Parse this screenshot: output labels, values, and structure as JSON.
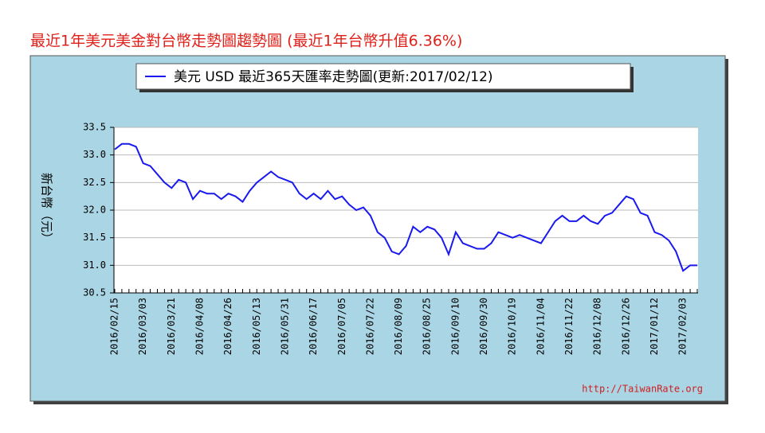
{
  "chart_data": {
    "type": "line",
    "title": "最近1年美元美金對台幣走勢圖趨勢圖 (最近1年台幣升值6.36%)",
    "y_label": "新台幣（元）",
    "watermark": "http://TaiwanRate.org",
    "categories": [
      "2016/02/15",
      null,
      null,
      null,
      "2016/03/03",
      null,
      null,
      null,
      "2016/03/21",
      null,
      null,
      null,
      "2016/04/08",
      null,
      null,
      null,
      "2016/04/26",
      null,
      null,
      null,
      "2016/05/13",
      null,
      null,
      null,
      "2016/05/31",
      null,
      null,
      null,
      "2016/06/17",
      null,
      null,
      null,
      "2016/07/05",
      null,
      null,
      null,
      "2016/07/22",
      null,
      null,
      null,
      "2016/08/09",
      null,
      null,
      null,
      "2016/08/25",
      null,
      null,
      null,
      "2016/09/10",
      null,
      null,
      null,
      "2016/09/30",
      null,
      null,
      null,
      "2016/10/19",
      null,
      null,
      null,
      "2016/11/04",
      null,
      null,
      null,
      "2016/11/22",
      null,
      null,
      null,
      "2016/12/08",
      null,
      null,
      null,
      "2016/12/26",
      null,
      null,
      null,
      "2017/01/12",
      null,
      null,
      null,
      "2017/02/03",
      null,
      null
    ],
    "series": [
      {
        "name": "美元 USD 最近365天匯率走勢圖(更新:2017/02/12)",
        "color": "#1a1aee",
        "values": [
          33.1,
          33.2,
          33.2,
          33.15,
          32.85,
          32.8,
          32.65,
          32.5,
          32.4,
          32.55,
          32.5,
          32.2,
          32.35,
          32.3,
          32.3,
          32.2,
          32.3,
          32.25,
          32.15,
          32.35,
          32.5,
          32.6,
          32.7,
          32.6,
          32.55,
          32.5,
          32.3,
          32.2,
          32.3,
          32.2,
          32.35,
          32.2,
          32.25,
          32.1,
          32.0,
          32.05,
          31.9,
          31.6,
          31.5,
          31.25,
          31.2,
          31.35,
          31.7,
          31.6,
          31.7,
          31.65,
          31.5,
          31.2,
          31.6,
          31.4,
          31.35,
          31.3,
          31.3,
          31.4,
          31.6,
          31.55,
          31.5,
          31.55,
          31.5,
          31.45,
          31.4,
          31.6,
          31.8,
          31.9,
          31.8,
          31.8,
          31.9,
          31.8,
          31.75,
          31.9,
          31.95,
          32.1,
          32.25,
          32.2,
          31.95,
          31.9,
          31.6,
          31.55,
          31.45,
          31.25,
          30.9,
          31.0,
          31.0
        ]
      }
    ],
    "ylim": [
      30.5,
      33.5
    ],
    "yticks": [
      {
        "value": 30.5,
        "label": "30.5"
      },
      {
        "value": 31,
        "label": "31.0"
      },
      {
        "value": 31.5,
        "label": "31.5"
      },
      {
        "value": 32,
        "label": "32.0"
      },
      {
        "value": 32.5,
        "label": "32.5"
      },
      {
        "value": 33,
        "label": "33.0"
      },
      {
        "value": 33.5,
        "label": "33.5"
      }
    ],
    "grid": true
  }
}
